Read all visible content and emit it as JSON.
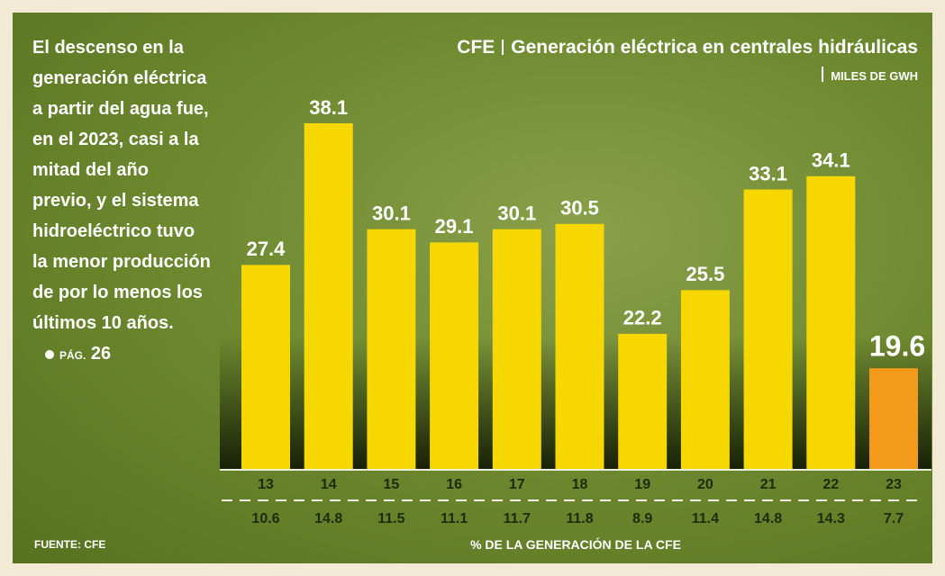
{
  "lede": {
    "text": "El descenso en la generación eléctrica a partir del agua fue, en el 2023, casi a la mitad del año previo, y el sistema hidroeléctrico tuvo la menor producción de por lo menos los últimos 10 años.",
    "page_label": "PÁG.",
    "page_number": "26"
  },
  "chart_data": {
    "type": "bar",
    "title": "CFE",
    "subtitle": "Generación eléctrica en centrales hidráulicas",
    "unit": "MILES DE GWH",
    "categories": [
      "13",
      "14",
      "15",
      "16",
      "17",
      "18",
      "19",
      "20",
      "21",
      "22",
      "23"
    ],
    "values": [
      27.4,
      38.1,
      30.1,
      29.1,
      30.1,
      30.5,
      22.2,
      25.5,
      33.1,
      34.1,
      19.6
    ],
    "colors": [
      "#f7d700",
      "#f7d700",
      "#f7d700",
      "#f7d700",
      "#f7d700",
      "#f7d700",
      "#f7d700",
      "#f7d700",
      "#f7d700",
      "#f7d700",
      "#f39a1b"
    ],
    "ylim": [
      12,
      40
    ],
    "shares": [
      10.6,
      14.8,
      11.5,
      11.1,
      11.7,
      11.8,
      8.9,
      11.4,
      14.8,
      14.3,
      7.7
    ],
    "share_label": "% DE LA GENERACIÓN DE LA CFE",
    "source": "FUENTE: CFE"
  }
}
